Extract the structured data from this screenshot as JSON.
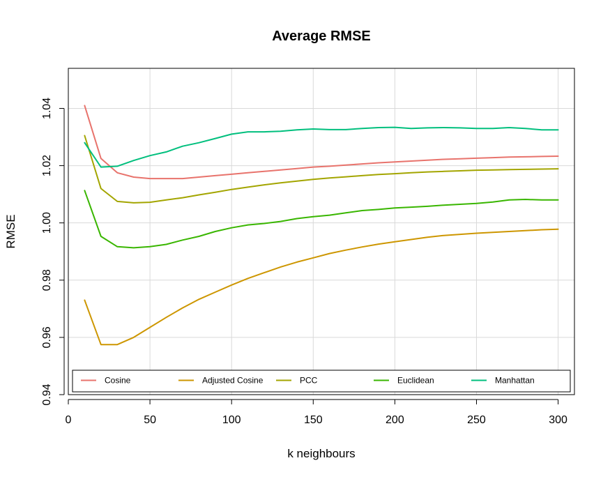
{
  "chart_data": {
    "type": "line",
    "title": "Average RMSE",
    "xlabel": "k neighbours",
    "ylabel": "RMSE",
    "xlim": [
      0,
      310
    ],
    "ylim": [
      0.94,
      1.054
    ],
    "xticks": [
      0,
      50,
      100,
      150,
      200,
      250,
      300
    ],
    "xtick_labels": [
      "0",
      "50",
      "100",
      "150",
      "200",
      "250",
      "300"
    ],
    "yticks": [
      0.94,
      0.96,
      0.98,
      1.0,
      1.02,
      1.04
    ],
    "ytick_labels": [
      "0.94",
      "0.96",
      "0.98",
      "1.00",
      "1.02",
      "1.04"
    ],
    "grid": true,
    "legend_position": "bottom",
    "x": [
      10,
      20,
      30,
      40,
      50,
      60,
      70,
      80,
      90,
      100,
      110,
      120,
      130,
      140,
      150,
      160,
      170,
      180,
      190,
      200,
      210,
      220,
      230,
      240,
      250,
      260,
      270,
      280,
      290,
      300
    ],
    "series": [
      {
        "name": "Cosine",
        "color": "#e8736c",
        "values": [
          1.041,
          1.0225,
          1.0175,
          1.016,
          1.0155,
          1.0155,
          1.0155,
          1.016,
          1.0165,
          1.017,
          1.0175,
          1.018,
          1.0185,
          1.019,
          1.0195,
          1.0198,
          1.0202,
          1.0206,
          1.021,
          1.0213,
          1.0216,
          1.0219,
          1.0222,
          1.0224,
          1.0226,
          1.0228,
          1.023,
          1.0231,
          1.0232,
          1.0233
        ]
      },
      {
        "name": "Adjusted Cosine",
        "color": "#cd9600",
        "values": [
          0.973,
          0.9575,
          0.9575,
          0.96,
          0.9635,
          0.967,
          0.9703,
          0.9733,
          0.9758,
          0.9783,
          0.9806,
          0.9826,
          0.9846,
          0.9863,
          0.9878,
          0.9893,
          0.9905,
          0.9916,
          0.9926,
          0.9934,
          0.9942,
          0.995,
          0.9956,
          0.996,
          0.9964,
          0.9967,
          0.997,
          0.9973,
          0.9976,
          0.9978
        ]
      },
      {
        "name": "PCC",
        "color": "#a3a500",
        "values": [
          1.0305,
          1.012,
          1.0075,
          1.007,
          1.0072,
          1.008,
          1.0088,
          1.0098,
          1.0107,
          1.0117,
          1.0125,
          1.0133,
          1.014,
          1.0146,
          1.0152,
          1.0157,
          1.0161,
          1.0165,
          1.0169,
          1.0172,
          1.0175,
          1.0178,
          1.018,
          1.0182,
          1.0184,
          1.0185,
          1.0186,
          1.0187,
          1.0188,
          1.0189
        ]
      },
      {
        "name": "Euclidean",
        "color": "#39b600",
        "values": [
          1.0113,
          0.9953,
          0.9917,
          0.9913,
          0.9917,
          0.9925,
          0.994,
          0.9953,
          0.997,
          0.9983,
          0.9993,
          0.9998,
          1.0005,
          1.0015,
          1.0022,
          1.0027,
          1.0035,
          1.0043,
          1.0047,
          1.0052,
          1.0055,
          1.0058,
          1.0062,
          1.0065,
          1.0068,
          1.0073,
          1.008,
          1.0082,
          1.008,
          1.008
        ]
      },
      {
        "name": "Manhattan",
        "color": "#00bf7d",
        "values": [
          1.028,
          1.0195,
          1.0198,
          1.0218,
          1.0235,
          1.0248,
          1.0268,
          1.028,
          1.0295,
          1.031,
          1.0318,
          1.0318,
          1.032,
          1.0325,
          1.0328,
          1.0326,
          1.0326,
          1.033,
          1.0333,
          1.0334,
          1.033,
          1.0332,
          1.0333,
          1.0332,
          1.033,
          1.033,
          1.0333,
          1.033,
          1.0325,
          1.0325
        ]
      }
    ]
  }
}
